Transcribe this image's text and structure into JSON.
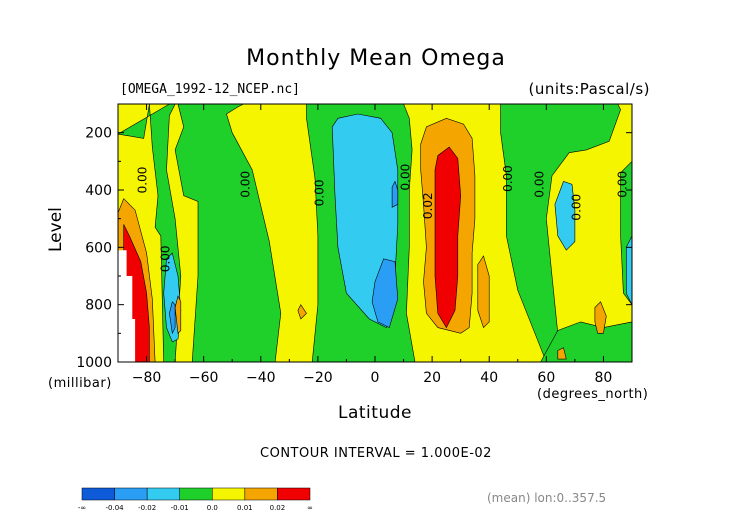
{
  "chart_data": {
    "type": "heatmap",
    "title": "Monthly Mean Omega",
    "file_label": "[OMEGA_1992-12_NCEP.nc]",
    "units_label": "(units:Pascal/s)",
    "xlabel": "Latitude",
    "xunit": "(degrees_north)",
    "ylabel": "Level",
    "yunit": "(millibar)",
    "xlim": [
      -90,
      90
    ],
    "ylim": [
      1000,
      100
    ],
    "xticks": [
      -80,
      -60,
      -40,
      -20,
      0,
      20,
      40,
      60,
      80
    ],
    "yticks": [
      200,
      400,
      600,
      800,
      1000
    ],
    "contour_interval_text": "CONTOUR INTERVAL = 1.000E-02",
    "mean_text": "(mean) lon:0..357.5",
    "contour_labels": [
      {
        "text": "0.00",
        "lat": -80,
        "lev": 365
      },
      {
        "text": "0.00",
        "lat": -72,
        "lev": 640
      },
      {
        "text": "0.00",
        "lat": -44,
        "lev": 380
      },
      {
        "text": "0.00",
        "lat": -18,
        "lev": 410
      },
      {
        "text": "0.00",
        "lat": 12,
        "lev": 355
      },
      {
        "text": "0.02",
        "lat": 20,
        "lev": 455
      },
      {
        "text": "0.00",
        "lat": 48,
        "lev": 360
      },
      {
        "text": "0.00",
        "lat": 59,
        "lev": 380
      },
      {
        "text": "0.00",
        "lat": 72,
        "lev": 460
      },
      {
        "text": "0.00",
        "lat": 88,
        "lev": 380
      }
    ],
    "colorbar": {
      "colors": [
        "#0d5bd9",
        "#2a9df4",
        "#33ccf0",
        "#1fcf2a",
        "#f5f500",
        "#f5a500",
        "#f00000"
      ],
      "tick_labels": [
        "-∞",
        "-0.04",
        "-0.02",
        "-0.01",
        "0.0",
        "0.01",
        "0.02",
        "∞"
      ]
    },
    "regions": [
      {
        "level_class": "0.0..0.01",
        "color": "#f5f500",
        "coords": [
          [
            -90,
            1000
          ],
          [
            -90,
            100
          ],
          [
            90,
            100
          ],
          [
            90,
            1000
          ]
        ]
      },
      {
        "level_class": "-0.01..0.0",
        "color": "#1fcf2a",
        "coords": [
          [
            -90,
            205
          ],
          [
            -81,
            220
          ],
          [
            -79,
            100
          ],
          [
            -78,
            250
          ],
          [
            -76,
            420
          ],
          [
            -77,
            530
          ],
          [
            -75,
            560
          ],
          [
            -74,
            1000
          ],
          [
            -70,
            1000
          ],
          [
            -68,
            700
          ],
          [
            -70,
            500
          ],
          [
            -73,
            330
          ],
          [
            -72,
            140
          ],
          [
            -70,
            100
          ],
          [
            -72,
            100
          ]
        ]
      },
      {
        "level_class": "-0.01..0.0",
        "color": "#1fcf2a",
        "coords": [
          [
            -69,
            100
          ],
          [
            -67,
            180
          ],
          [
            -70,
            260
          ],
          [
            -67,
            420
          ],
          [
            -62,
            440
          ],
          [
            -62,
            700
          ],
          [
            -64,
            1000
          ],
          [
            -35,
            1000
          ],
          [
            -33,
            830
          ],
          [
            -37,
            580
          ],
          [
            -43,
            330
          ],
          [
            -50,
            200
          ],
          [
            -52,
            135
          ],
          [
            -48,
            110
          ],
          [
            -46,
            100
          ]
        ]
      },
      {
        "level_class": "-0.01..0.0",
        "color": "#1fcf2a",
        "coords": [
          [
            -24,
            100
          ],
          [
            -24,
            150
          ],
          [
            -21,
            360
          ],
          [
            -20,
            560
          ],
          [
            -20,
            800
          ],
          [
            -22,
            1000
          ],
          [
            14,
            1000
          ],
          [
            11,
            830
          ],
          [
            12,
            600
          ],
          [
            12,
            400
          ],
          [
            13,
            260
          ],
          [
            12,
            150
          ],
          [
            10,
            100
          ]
        ]
      },
      {
        "level_class": "-0.01..0.0",
        "color": "#1fcf2a",
        "coords": [
          [
            44,
            100
          ],
          [
            44,
            200
          ],
          [
            46,
            350
          ],
          [
            46,
            560
          ],
          [
            50,
            750
          ],
          [
            56,
            900
          ],
          [
            60,
            1000
          ],
          [
            62,
            1000
          ],
          [
            64,
            900
          ],
          [
            62,
            700
          ],
          [
            60,
            500
          ],
          [
            62,
            350
          ],
          [
            68,
            270
          ],
          [
            74,
            260
          ],
          [
            82,
            230
          ],
          [
            86,
            120
          ],
          [
            85,
            100
          ]
        ]
      },
      {
        "level_class": "-0.01..0.0",
        "color": "#1fcf2a",
        "coords": [
          [
            58,
            1000
          ],
          [
            64,
            890
          ],
          [
            72,
            860
          ],
          [
            80,
            880
          ],
          [
            90,
            860
          ],
          [
            90,
            1000
          ]
        ]
      },
      {
        "level_class": "-0.01..0.0",
        "color": "#1fcf2a",
        "coords": [
          [
            86,
            340
          ],
          [
            86,
            560
          ],
          [
            87,
            760
          ],
          [
            90,
            800
          ],
          [
            90,
            300
          ]
        ]
      },
      {
        "level_class": "-0.02..-0.01",
        "color": "#33ccf0",
        "coords": [
          [
            -15,
            180
          ],
          [
            -13,
            150
          ],
          [
            -6,
            135
          ],
          [
            2,
            150
          ],
          [
            6,
            200
          ],
          [
            8,
            330
          ],
          [
            8,
            520
          ],
          [
            7,
            700
          ],
          [
            4,
            880
          ],
          [
            -2,
            850
          ],
          [
            -10,
            760
          ],
          [
            -13,
            600
          ],
          [
            -14,
            420
          ]
        ]
      },
      {
        "level_class": "-0.02..-0.01",
        "color": "#33ccf0",
        "coords": [
          [
            -74,
            760
          ],
          [
            -73,
            640
          ],
          [
            -71,
            620
          ],
          [
            -69,
            700
          ],
          [
            -68,
            820
          ],
          [
            -69,
            920
          ],
          [
            -71,
            930
          ],
          [
            -73,
            880
          ]
        ]
      },
      {
        "level_class": "-0.02..-0.01",
        "color": "#33ccf0",
        "coords": [
          [
            63,
            450
          ],
          [
            66,
            370
          ],
          [
            69,
            380
          ],
          [
            70,
            470
          ],
          [
            70,
            580
          ],
          [
            67,
            610
          ],
          [
            64,
            560
          ]
        ]
      },
      {
        "level_class": "-0.02..-0.01",
        "color": "#33ccf0",
        "coords": [
          [
            88,
            600
          ],
          [
            90,
            560
          ],
          [
            90,
            800
          ],
          [
            88,
            760
          ]
        ]
      },
      {
        "level_class": "-0.04..-0.02",
        "color": "#2a9df4",
        "coords": [
          [
            0,
            720
          ],
          [
            3,
            640
          ],
          [
            7,
            650
          ],
          [
            8,
            780
          ],
          [
            5,
            880
          ],
          [
            1,
            860
          ],
          [
            -1,
            790
          ]
        ]
      },
      {
        "level_class": "-0.04..-0.02",
        "color": "#2a9df4",
        "coords": [
          [
            -72,
            830
          ],
          [
            -71,
            790
          ],
          [
            -70,
            800
          ],
          [
            -70,
            880
          ],
          [
            -71,
            900
          ]
        ]
      },
      {
        "level_class": "-0.04..-0.02",
        "color": "#2a9df4",
        "coords": [
          [
            6,
            390
          ],
          [
            7,
            370
          ],
          [
            8,
            400
          ],
          [
            8,
            450
          ],
          [
            6,
            460
          ]
        ]
      },
      {
        "level_class": "0.01..0.02",
        "color": "#f5a500",
        "coords": [
          [
            -90,
            480
          ],
          [
            -88,
            430
          ],
          [
            -84,
            470
          ],
          [
            -80,
            620
          ],
          [
            -78,
            780
          ],
          [
            -77,
            1000
          ],
          [
            -90,
            1000
          ]
        ]
      },
      {
        "level_class": "0.01..0.02",
        "color": "#f5a500",
        "coords": [
          [
            16,
            240
          ],
          [
            18,
            180
          ],
          [
            25,
            150
          ],
          [
            31,
            170
          ],
          [
            34,
            220
          ],
          [
            35,
            350
          ],
          [
            35,
            500
          ],
          [
            34,
            620
          ],
          [
            34,
            760
          ],
          [
            33,
            880
          ],
          [
            30,
            900
          ],
          [
            22,
            880
          ],
          [
            18,
            830
          ],
          [
            17,
            720
          ],
          [
            18,
            600
          ],
          [
            17,
            450
          ],
          [
            16,
            330
          ]
        ]
      },
      {
        "level_class": "0.01..0.02",
        "color": "#f5a500",
        "coords": [
          [
            36,
            660
          ],
          [
            38,
            630
          ],
          [
            40,
            700
          ],
          [
            40,
            860
          ],
          [
            38,
            880
          ],
          [
            36,
            820
          ]
        ]
      },
      {
        "level_class": "0.01..0.02",
        "color": "#f5a500",
        "coords": [
          [
            77,
            810
          ],
          [
            79,
            790
          ],
          [
            81,
            840
          ],
          [
            80,
            900
          ],
          [
            78,
            900
          ],
          [
            77,
            860
          ]
        ]
      },
      {
        "level_class": "0.01..0.02",
        "color": "#f5a500",
        "coords": [
          [
            64,
            960
          ],
          [
            66,
            950
          ],
          [
            67,
            990
          ],
          [
            64,
            990
          ]
        ]
      },
      {
        "level_class": "0.01..0.02",
        "color": "#f5a500",
        "coords": [
          [
            -27,
            820
          ],
          [
            -26,
            800
          ],
          [
            -24,
            830
          ],
          [
            -26,
            850
          ]
        ]
      },
      {
        "level_class": "0.01..0.02",
        "color": "#f5a500",
        "coords": [
          [
            -70,
            810
          ],
          [
            -69,
            770
          ],
          [
            -68,
            790
          ],
          [
            -68,
            890
          ],
          [
            -69,
            900
          ]
        ]
      },
      {
        "level_class": ">0.02",
        "color": "#f00000",
        "coords": [
          [
            -88,
            520
          ],
          [
            -86,
            560
          ],
          [
            -82,
            650
          ],
          [
            -80,
            760
          ],
          [
            -79,
            880
          ],
          [
            -79,
            1000
          ],
          [
            -86,
            1000
          ],
          [
            -88,
            740
          ]
        ]
      },
      {
        "level_class": ">0.02",
        "color": "#f00000",
        "coords": [
          [
            21,
            330
          ],
          [
            22,
            280
          ],
          [
            26,
            250
          ],
          [
            29,
            290
          ],
          [
            30,
            420
          ],
          [
            29,
            560
          ],
          [
            29,
            700
          ],
          [
            28,
            820
          ],
          [
            25,
            880
          ],
          [
            22,
            830
          ],
          [
            21,
            700
          ],
          [
            21,
            500
          ]
        ]
      },
      {
        "level_class": "undefined",
        "color": "#ffffff",
        "coords": [
          [
            -90,
            610
          ],
          [
            -87,
            610
          ],
          [
            -87,
            700
          ],
          [
            -85,
            700
          ],
          [
            -85,
            850
          ],
          [
            -84,
            850
          ],
          [
            -84,
            1000
          ],
          [
            -90,
            1000
          ]
        ]
      }
    ]
  }
}
